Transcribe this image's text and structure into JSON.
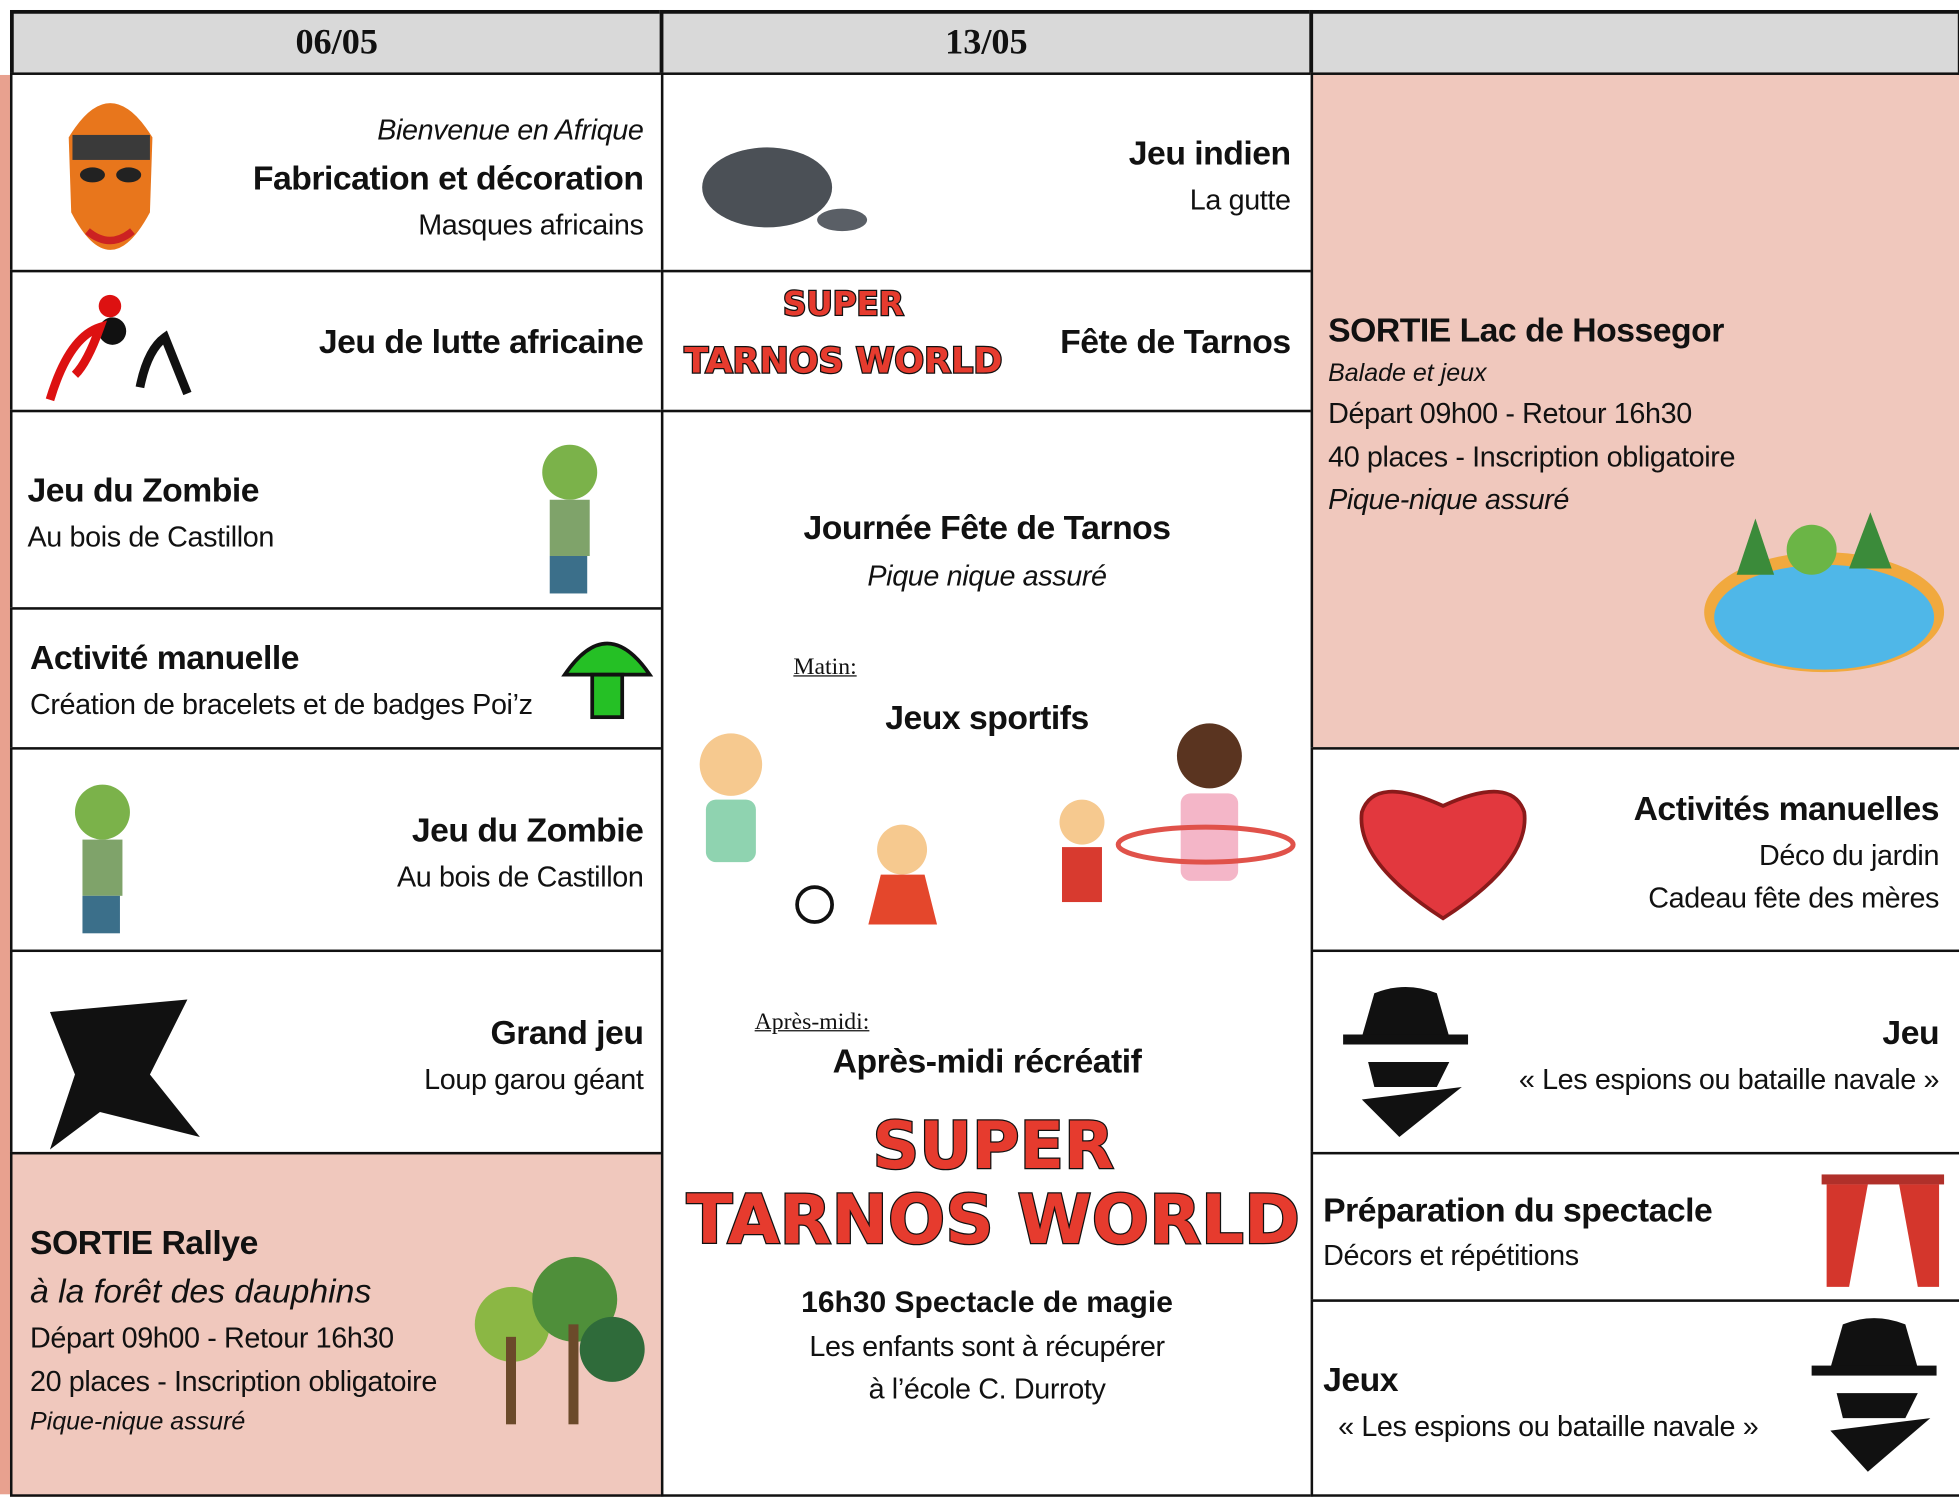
{
  "header": {
    "dates": [
      "06/05",
      "13/05"
    ]
  },
  "logo": [
    "SUPER",
    "TARNOS WORLD"
  ],
  "columns": [
    {
      "cells": [
        [
          "Bienvenue en Afrique",
          "Fabrication et décoration",
          "Masques africains"
        ],
        [
          "Jeu de lutte africaine"
        ],
        [
          "Jeu du Zombie",
          "Au bois de Castillon"
        ],
        [
          "Activité manuelle",
          "Création de bracelets et de badges Poi’z"
        ],
        [
          "Jeu du Zombie",
          "Au bois de Castillon"
        ],
        [
          "Grand jeu",
          "Loup garou géant"
        ],
        [
          "SORTIE Rallye",
          "à la forêt des dauphins",
          "Départ 09h00 - Retour 16h30",
          "20 places - Inscription obligatoire",
          "Pique-nique assuré"
        ]
      ]
    },
    {
      "cells": [
        [
          "Jeu indien",
          "La gutte"
        ],
        [
          "Fête de Tarnos"
        ],
        [
          "Journée Fête de Tarnos",
          "Pique nique assuré",
          "Matin:",
          "Jeux sportifs",
          "Après-midi:",
          "Après-midi récréatif",
          "16h30 Spectacle de magie",
          "Les enfants sont à récupérer",
          "à l’école C. Durroty"
        ]
      ]
    },
    {
      "cells": [
        [
          "SORTIE Lac de Hossegor",
          "Balade et jeux",
          "Départ 09h00 - Retour 16h30",
          "40 places - Inscription obligatoire",
          "Pique-nique assuré"
        ],
        [
          "Activités manuelles",
          "Déco du jardin",
          "Cadeau fête des mères"
        ],
        [
          "Jeu",
          "« Les espions ou bataille navale »"
        ],
        [
          "Préparation du spectacle",
          "Décors et répétitions"
        ],
        [
          "Jeux",
          "« Les espions ou bataille navale »"
        ]
      ]
    }
  ]
}
